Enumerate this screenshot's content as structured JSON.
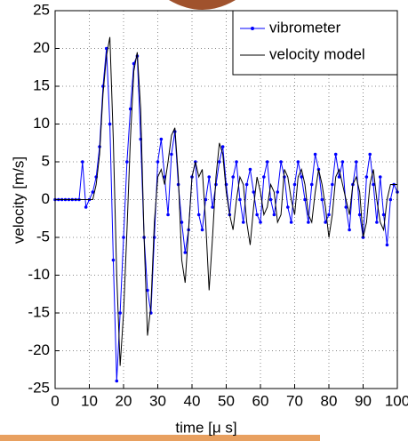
{
  "chart_data": {
    "type": "line",
    "x_label": "time [μ s]",
    "y_label": "velocity [m/s]",
    "x": [
      0,
      1,
      2,
      3,
      4,
      5,
      6,
      7,
      8,
      9,
      10,
      11,
      12,
      13,
      14,
      15,
      16,
      17,
      18,
      19,
      20,
      21,
      22,
      23,
      24,
      25,
      26,
      27,
      28,
      29,
      30,
      31,
      32,
      33,
      34,
      35,
      36,
      37,
      38,
      39,
      40,
      41,
      42,
      43,
      44,
      45,
      46,
      47,
      48,
      49,
      50,
      51,
      52,
      53,
      54,
      55,
      56,
      57,
      58,
      59,
      60,
      61,
      62,
      63,
      64,
      65,
      66,
      67,
      68,
      69,
      70,
      71,
      72,
      73,
      74,
      75,
      76,
      77,
      78,
      79,
      80,
      81,
      82,
      83,
      84,
      85,
      86,
      87,
      88,
      89,
      90,
      91,
      92,
      93,
      94,
      95,
      96,
      97,
      98,
      99,
      100
    ],
    "series": [
      {
        "name": "vibrometer",
        "color": "#0000ff",
        "markers": true,
        "values": [
          0,
          0,
          0,
          0,
          0,
          0,
          0,
          0,
          5,
          -1,
          0,
          1,
          3,
          7,
          15,
          20,
          10,
          -8,
          -24,
          -15,
          -5,
          5,
          12,
          18,
          19,
          8,
          -5,
          -12,
          -15,
          -5,
          5,
          8,
          3,
          -2,
          6,
          9,
          2,
          -3,
          -7,
          -4,
          3,
          5,
          -2,
          -4,
          0,
          3,
          -1,
          2,
          5,
          7,
          2,
          -2,
          3,
          5,
          0,
          -3,
          2,
          4,
          1,
          -2,
          -3,
          3,
          5,
          0,
          -2,
          1,
          5,
          3,
          -1,
          -3,
          2,
          5,
          3,
          0,
          -3,
          2,
          6,
          4,
          0,
          -3,
          -2,
          2,
          6,
          3,
          5,
          -1,
          -4,
          2,
          5,
          -2,
          -5,
          3,
          6,
          2,
          -3,
          3,
          -2,
          -6,
          0,
          2,
          1
        ]
      },
      {
        "name": "velocity model",
        "color": "#000000",
        "markers": false,
        "values": [
          0,
          0,
          0,
          0,
          0,
          0,
          0,
          0,
          0,
          0,
          0,
          0,
          2,
          6,
          14,
          19,
          21.5,
          8,
          -10,
          -22,
          -15,
          -4,
          8,
          17,
          19.5,
          12,
          -5,
          -18,
          -14,
          -3,
          3,
          4,
          2,
          5,
          8.5,
          9.5,
          3,
          -8,
          -11,
          -4,
          3,
          5,
          3,
          4,
          -3,
          -12,
          -5,
          3,
          7.5,
          6,
          1,
          -2,
          -4,
          0,
          3,
          2,
          -3,
          -6,
          -1,
          3,
          1,
          -2,
          -1,
          2,
          1,
          -3,
          -2,
          4,
          3,
          0,
          -2,
          3,
          4,
          2,
          -2,
          -3,
          1,
          4,
          2,
          -1,
          -5,
          -2,
          3,
          4,
          2,
          0,
          -2,
          2,
          3,
          1,
          -5,
          -3,
          2,
          4,
          0,
          -3,
          -4,
          0,
          2,
          2,
          2
        ]
      }
    ],
    "xlim": [
      0,
      100
    ],
    "xticks": [
      0,
      10,
      20,
      30,
      40,
      50,
      60,
      70,
      80,
      90,
      100
    ],
    "ylim": [
      -25,
      25
    ],
    "yticks": [
      -25,
      -20,
      -15,
      -10,
      -5,
      0,
      5,
      10,
      15,
      20,
      25
    ],
    "grid": true,
    "legend": "upper right"
  }
}
